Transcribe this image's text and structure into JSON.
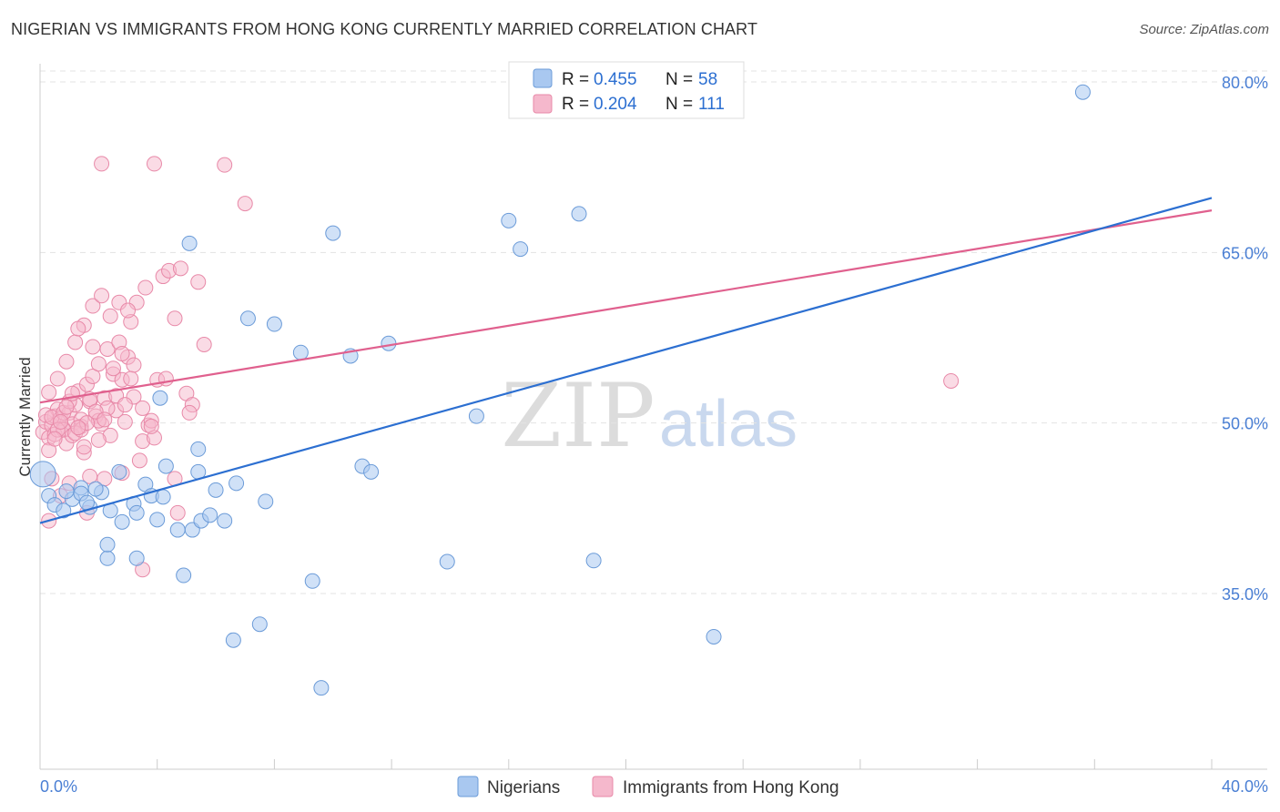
{
  "header": {
    "title": "NIGERIAN VS IMMIGRANTS FROM HONG KONG CURRENTLY MARRIED CORRELATION CHART",
    "source": "Source: ZipAtlas.com"
  },
  "watermark": {
    "zip": "ZIP",
    "atlas": "atlas"
  },
  "colors": {
    "blue_fill": "#a9c8f0",
    "blue_stroke": "#6b9bd8",
    "blue_line": "#2c6fd1",
    "pink_fill": "#f5b8cc",
    "pink_stroke": "#e889a8",
    "pink_line": "#e0608e",
    "axis_label": "#4a7fd4",
    "grid": "#e3e3e3"
  },
  "legend_top": {
    "rows": [
      {
        "r_label": "R = ",
        "r_value": "0.455",
        "n_label": "N = ",
        "n_value": "58"
      },
      {
        "r_label": "R = ",
        "r_value": "0.204",
        "n_label": "N = ",
        "n_value": "111"
      }
    ]
  },
  "chart_data": {
    "type": "scatter",
    "title": "NIGERIAN VS IMMIGRANTS FROM HONG KONG CURRENTLY MARRIED CORRELATION CHART",
    "ylabel": "Currently Married",
    "xlabel": "",
    "xlim": [
      0,
      40
    ],
    "ylim": [
      20,
      82
    ],
    "x_tick_labels": [
      "0.0%",
      "40.0%"
    ],
    "y_ticks": [
      35,
      50,
      65,
      80
    ],
    "y_tick_labels": [
      "35.0%",
      "50.0%",
      "65.0%",
      "80.0%"
    ],
    "legend_bottom": [
      "Nigerians",
      "Immigrants from Hong Kong"
    ],
    "series": [
      {
        "name": "Nigerians",
        "r": 0.455,
        "n": 58,
        "trend": {
          "x0": 0,
          "y0": 41.2,
          "x1": 40,
          "y1": 69.8
        },
        "points": [
          [
            0.1,
            45.5
          ],
          [
            0.3,
            43.6
          ],
          [
            0.5,
            42.8
          ],
          [
            0.8,
            42.3
          ],
          [
            1.1,
            43.3
          ],
          [
            1.4,
            44.3
          ],
          [
            1.7,
            42.6
          ],
          [
            2.1,
            43.9
          ],
          [
            2.4,
            42.3
          ],
          [
            2.8,
            41.3
          ],
          [
            3.2,
            42.9
          ],
          [
            3.6,
            44.6
          ],
          [
            3.8,
            43.6
          ],
          [
            4.0,
            41.5
          ],
          [
            4.3,
            46.2
          ],
          [
            4.7,
            40.6
          ],
          [
            5.2,
            40.6
          ],
          [
            5.5,
            41.4
          ],
          [
            5.8,
            41.9
          ],
          [
            6.3,
            41.4
          ],
          [
            7.7,
            43.1
          ],
          [
            1.4,
            43.8
          ],
          [
            2.7,
            45.7
          ],
          [
            3.3,
            38.1
          ],
          [
            2.3,
            38.1
          ],
          [
            2.3,
            39.3
          ],
          [
            4.9,
            36.6
          ],
          [
            9.3,
            36.1
          ],
          [
            6.6,
            30.9
          ],
          [
            7.5,
            32.3
          ],
          [
            9.6,
            26.7
          ],
          [
            11.0,
            46.2
          ],
          [
            11.3,
            45.7
          ],
          [
            5.4,
            47.7
          ],
          [
            4.1,
            52.2
          ],
          [
            5.4,
            45.7
          ],
          [
            6.7,
            44.7
          ],
          [
            6.0,
            44.1
          ],
          [
            3.3,
            42.1
          ],
          [
            7.1,
            59.2
          ],
          [
            8.0,
            58.7
          ],
          [
            8.9,
            56.2
          ],
          [
            10.6,
            55.9
          ],
          [
            11.9,
            57.0
          ],
          [
            5.1,
            65.8
          ],
          [
            10.0,
            66.7
          ],
          [
            14.9,
            50.6
          ],
          [
            16.0,
            67.8
          ],
          [
            16.4,
            65.3
          ],
          [
            18.4,
            68.4
          ],
          [
            13.9,
            37.8
          ],
          [
            18.9,
            37.9
          ],
          [
            23.0,
            31.2
          ],
          [
            35.6,
            79.1
          ],
          [
            1.9,
            44.2
          ],
          [
            0.9,
            44.0
          ],
          [
            1.6,
            43.0
          ],
          [
            4.2,
            43.5
          ]
        ]
      },
      {
        "name": "Immigrants from Hong Kong",
        "r": 0.204,
        "n": 111,
        "trend": {
          "x0": 0,
          "y0": 51.8,
          "x1": 40,
          "y1": 68.7
        },
        "points": [
          [
            0.1,
            49.2
          ],
          [
            0.2,
            50.1
          ],
          [
            0.3,
            48.7
          ],
          [
            0.4,
            49.8
          ],
          [
            0.5,
            50.6
          ],
          [
            0.6,
            51.2
          ],
          [
            0.7,
            50.4
          ],
          [
            0.8,
            49.5
          ],
          [
            0.9,
            48.2
          ],
          [
            1.0,
            50.9
          ],
          [
            1.1,
            49.9
          ],
          [
            1.2,
            51.6
          ],
          [
            1.3,
            52.8
          ],
          [
            1.4,
            49.7
          ],
          [
            1.5,
            47.4
          ],
          [
            1.6,
            53.4
          ],
          [
            1.7,
            51.9
          ],
          [
            1.8,
            54.1
          ],
          [
            1.9,
            50.6
          ],
          [
            2.0,
            55.2
          ],
          [
            2.1,
            49.9
          ],
          [
            2.2,
            52.2
          ],
          [
            2.3,
            56.5
          ],
          [
            2.4,
            48.9
          ],
          [
            2.5,
            54.3
          ],
          [
            2.6,
            51.1
          ],
          [
            2.7,
            57.1
          ],
          [
            2.8,
            53.8
          ],
          [
            2.9,
            50.1
          ],
          [
            3.0,
            55.8
          ],
          [
            3.1,
            58.9
          ],
          [
            3.2,
            52.3
          ],
          [
            3.3,
            60.6
          ],
          [
            3.4,
            46.7
          ],
          [
            3.5,
            48.4
          ],
          [
            3.6,
            61.9
          ],
          [
            3.7,
            49.8
          ],
          [
            3.8,
            50.2
          ],
          [
            3.9,
            48.7
          ],
          [
            4.0,
            53.8
          ],
          [
            4.2,
            62.9
          ],
          [
            4.4,
            63.4
          ],
          [
            4.6,
            59.2
          ],
          [
            4.8,
            63.6
          ],
          [
            5.0,
            52.6
          ],
          [
            5.2,
            51.6
          ],
          [
            5.4,
            62.4
          ],
          [
            5.6,
            56.9
          ],
          [
            0.3,
            52.7
          ],
          [
            0.6,
            53.9
          ],
          [
            0.9,
            55.4
          ],
          [
            1.2,
            57.1
          ],
          [
            1.5,
            58.6
          ],
          [
            1.8,
            60.3
          ],
          [
            2.1,
            61.2
          ],
          [
            2.4,
            59.4
          ],
          [
            2.7,
            60.6
          ],
          [
            3.0,
            59.9
          ],
          [
            1.3,
            58.3
          ],
          [
            1.8,
            56.7
          ],
          [
            0.4,
            45.1
          ],
          [
            0.7,
            43.6
          ],
          [
            1.0,
            44.7
          ],
          [
            1.6,
            42.1
          ],
          [
            2.2,
            45.1
          ],
          [
            2.8,
            45.6
          ],
          [
            3.5,
            37.1
          ],
          [
            4.6,
            45.1
          ],
          [
            4.7,
            42.1
          ],
          [
            0.3,
            41.4
          ],
          [
            2.1,
            72.8
          ],
          [
            3.9,
            72.8
          ],
          [
            6.3,
            72.7
          ],
          [
            7.0,
            69.3
          ],
          [
            31.1,
            53.7
          ],
          [
            0.5,
            49.0
          ],
          [
            0.8,
            49.4
          ],
          [
            1.1,
            48.9
          ],
          [
            1.4,
            50.3
          ],
          [
            1.7,
            52.1
          ],
          [
            2.0,
            50.2
          ],
          [
            2.3,
            51.3
          ],
          [
            2.6,
            52.4
          ],
          [
            2.9,
            51.6
          ],
          [
            3.2,
            55.1
          ],
          [
            3.5,
            51.3
          ],
          [
            3.8,
            49.7
          ],
          [
            0.2,
            50.7
          ],
          [
            0.4,
            50.5
          ],
          [
            0.6,
            49.4
          ],
          [
            0.8,
            50.9
          ],
          [
            1.0,
            51.9
          ],
          [
            1.2,
            49.1
          ],
          [
            1.4,
            49.4
          ],
          [
            1.6,
            50.0
          ],
          [
            1.9,
            51.0
          ],
          [
            2.2,
            50.3
          ],
          [
            2.5,
            54.8
          ],
          [
            2.8,
            56.1
          ],
          [
            3.1,
            53.9
          ],
          [
            0.3,
            47.6
          ],
          [
            0.5,
            48.6
          ],
          [
            0.7,
            50.1
          ],
          [
            0.9,
            51.4
          ],
          [
            1.1,
            52.6
          ],
          [
            1.3,
            49.6
          ],
          [
            1.5,
            47.9
          ],
          [
            1.7,
            45.3
          ],
          [
            2.0,
            48.5
          ],
          [
            4.3,
            53.9
          ],
          [
            5.1,
            50.9
          ]
        ]
      }
    ]
  }
}
